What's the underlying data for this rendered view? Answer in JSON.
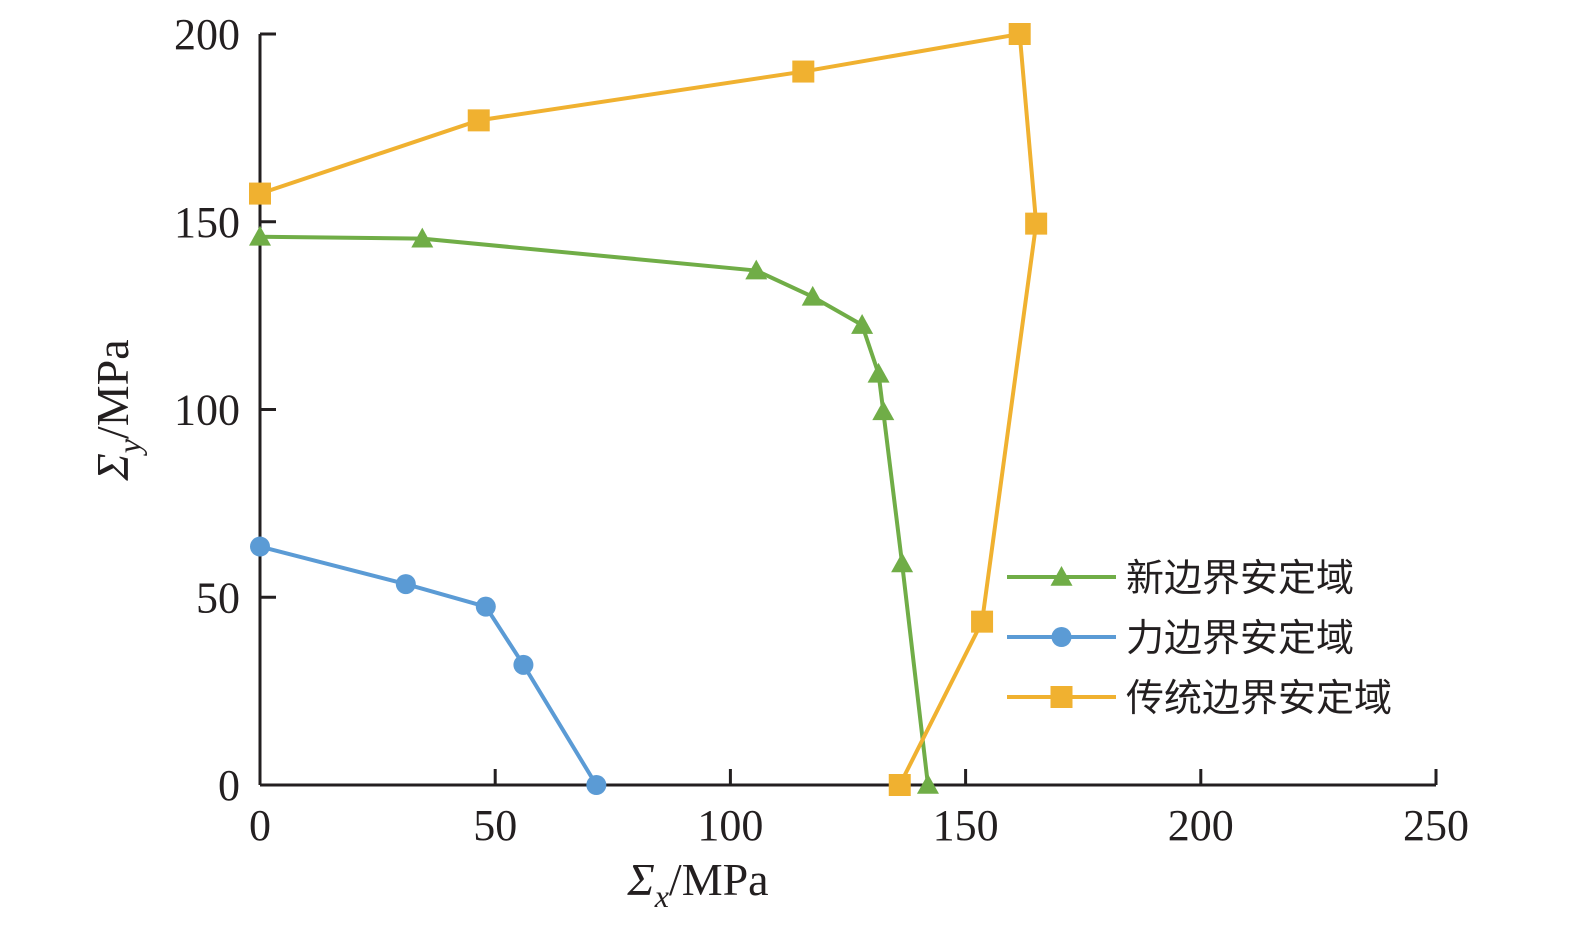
{
  "chart_data": {
    "type": "line",
    "title": "",
    "xlabel": {
      "symbol": "Σ",
      "subscript": "x",
      "unit": "/MPa"
    },
    "ylabel": {
      "symbol": "Σ",
      "subscript": "y",
      "unit": "/MPa"
    },
    "xlim": [
      0,
      250
    ],
    "ylim": [
      0,
      200
    ],
    "xticks": [
      "0",
      "50",
      "100",
      "150",
      "200",
      "250"
    ],
    "yticks": [
      "0",
      "50",
      "100",
      "150",
      "200"
    ],
    "grid": false,
    "legend_position": "bottom-right",
    "series": [
      {
        "name": "新边界安定域",
        "color": "#70ad47",
        "marker": "triangle",
        "points": [
          [
            0,
            146
          ],
          [
            34.5,
            145.5
          ],
          [
            105.5,
            137
          ],
          [
            117.5,
            130
          ],
          [
            128,
            122.5
          ],
          [
            131.5,
            109.5
          ],
          [
            132.5,
            99.5
          ],
          [
            136.5,
            59
          ],
          [
            142,
            0
          ]
        ]
      },
      {
        "name": "力边界安定域",
        "color": "#5b9bd5",
        "marker": "circle",
        "points": [
          [
            0,
            63.5
          ],
          [
            31,
            53.5
          ],
          [
            48,
            47.5
          ],
          [
            56,
            32
          ],
          [
            71.5,
            0
          ]
        ]
      },
      {
        "name": "传统边界安定域",
        "color": "#f0b130",
        "marker": "square",
        "points": [
          [
            0,
            157.5
          ],
          [
            46.5,
            177
          ],
          [
            115.5,
            190
          ],
          [
            161.5,
            200
          ],
          [
            165,
            149.5
          ],
          [
            153.5,
            43.5
          ],
          [
            136,
            0
          ]
        ]
      }
    ]
  }
}
